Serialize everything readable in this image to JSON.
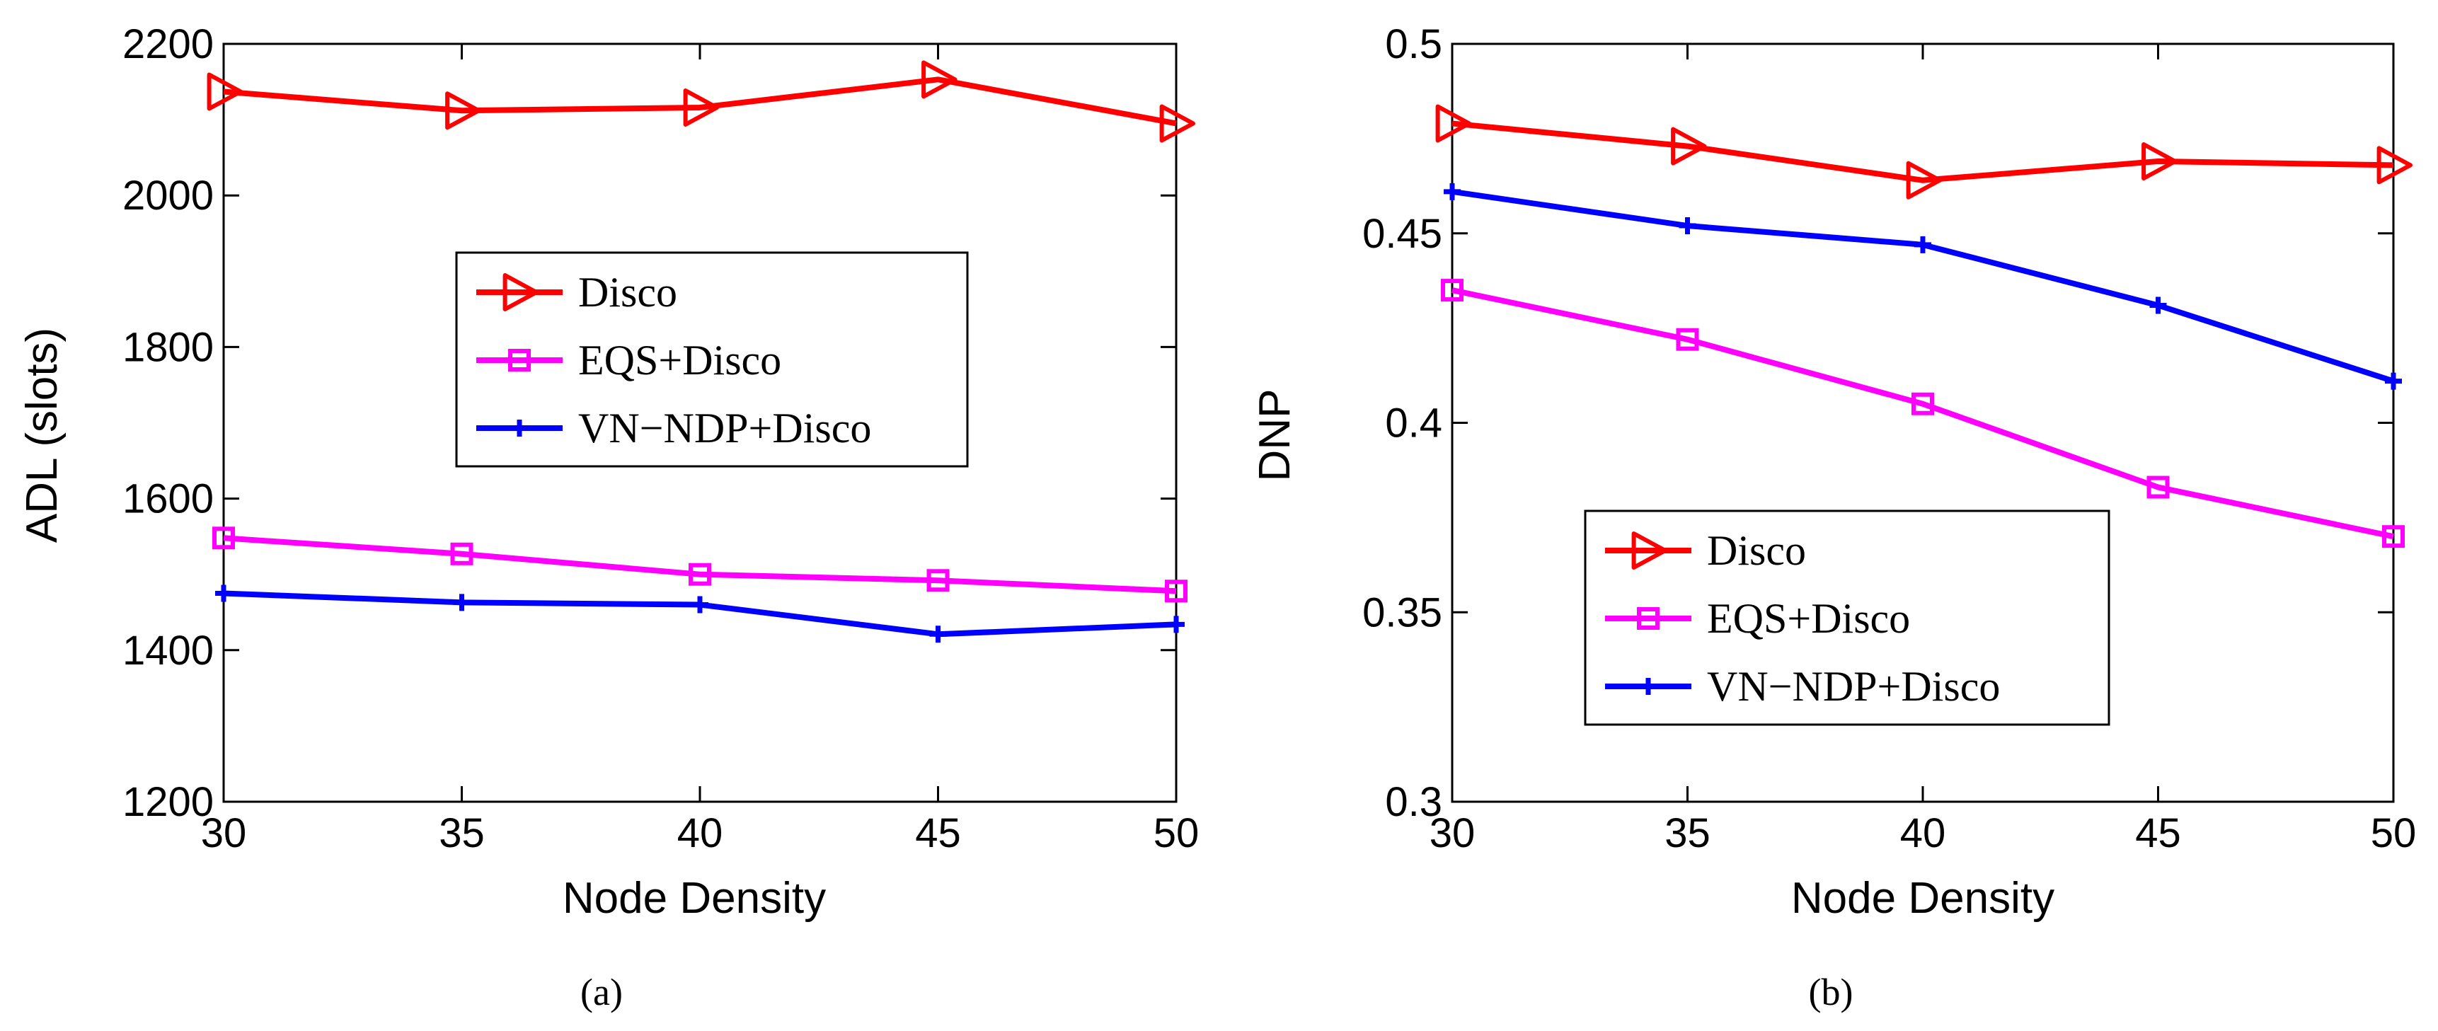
{
  "chart_data": [
    {
      "type": "line",
      "caption": "(a)",
      "xlabel": "Node Density",
      "ylabel": "ADL (slots)",
      "xlim": [
        30,
        50
      ],
      "ylim": [
        1200,
        2200
      ],
      "xticks": [
        "30",
        "35",
        "40",
        "45",
        "50"
      ],
      "yticks": [
        "1200",
        "1400",
        "1600",
        "1800",
        "2000",
        "2200"
      ],
      "x": [
        30,
        35,
        40,
        45,
        50
      ],
      "legend_position": "center",
      "series": [
        {
          "name": "Disco",
          "color": "#ff0000",
          "marker": "triangle-right",
          "values": [
            2137,
            2112,
            2116,
            2153,
            2095
          ]
        },
        {
          "name": "EQS+Disco",
          "color": "#ff00ff",
          "marker": "square",
          "values": [
            1548,
            1527,
            1500,
            1492,
            1478
          ]
        },
        {
          "name": "VN−NDP+Disco",
          "color": "#0000ff",
          "marker": "plus",
          "values": [
            1475,
            1463,
            1460,
            1421,
            1434
          ]
        }
      ]
    },
    {
      "type": "line",
      "caption": "(b)",
      "xlabel": "Node Density",
      "ylabel": "DNP",
      "xlim": [
        30,
        50
      ],
      "ylim": [
        0.3,
        0.5
      ],
      "xticks": [
        "30",
        "35",
        "40",
        "45",
        "50"
      ],
      "yticks": [
        "0.3",
        "0.35",
        "0.4",
        "0.45",
        "0.5"
      ],
      "x": [
        30,
        35,
        40,
        45,
        50
      ],
      "legend_position": "lower-center",
      "series": [
        {
          "name": "Disco",
          "color": "#ff0000",
          "marker": "triangle-right",
          "values": [
            0.479,
            0.473,
            0.464,
            0.469,
            0.468
          ]
        },
        {
          "name": "EQS+Disco",
          "color": "#ff00ff",
          "marker": "square",
          "values": [
            0.435,
            0.422,
            0.405,
            0.383,
            0.37
          ]
        },
        {
          "name": "VN−NDP+Disco",
          "color": "#0000ff",
          "marker": "plus",
          "values": [
            0.461,
            0.452,
            0.447,
            0.431,
            0.411
          ]
        }
      ]
    }
  ]
}
